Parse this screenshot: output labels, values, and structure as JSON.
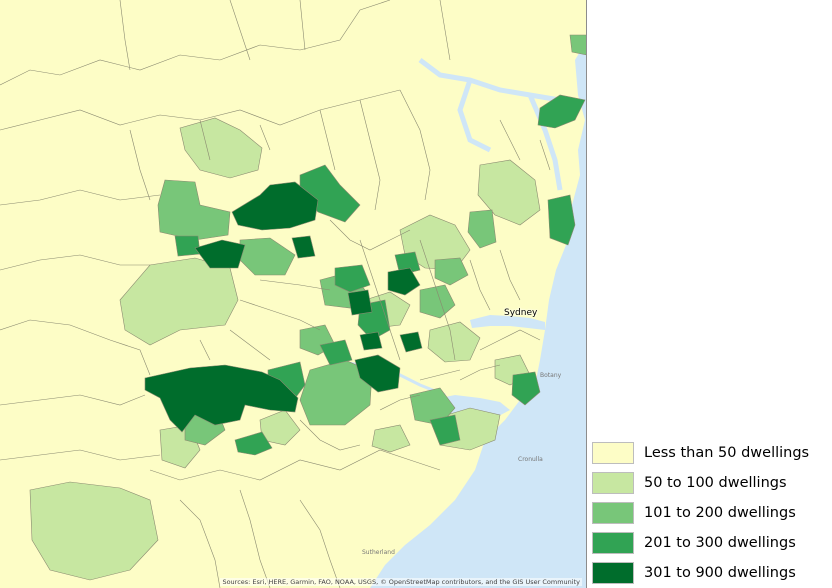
{
  "map": {
    "city_label": "Sydney",
    "suburb_labels": [
      "Sutherland",
      "Botany",
      "Cronulla"
    ],
    "attribution": "Sources: Esri, HERE, Garmin, FAO, NOAA, USGS, © OpenStreetMap contributors, and the GIS User Community",
    "colors": {
      "water": "#cfe6f7",
      "boundary": "#8a8a70",
      "class_1": "#fdfdc6",
      "class_2": "#c7e7a1",
      "class_3": "#78c679",
      "class_4": "#31a354",
      "class_5": "#006d2c"
    }
  },
  "legend": {
    "items": [
      {
        "label": "Less than 50 dwellings",
        "color": "#fdfdc6"
      },
      {
        "label": "50 to 100 dwellings",
        "color": "#c7e7a1"
      },
      {
        "label": "101 to 200 dwellings",
        "color": "#78c679"
      },
      {
        "label": "201 to 300 dwellings",
        "color": "#31a354"
      },
      {
        "label": "301 to 900 dwellings",
        "color": "#006d2c"
      }
    ]
  }
}
